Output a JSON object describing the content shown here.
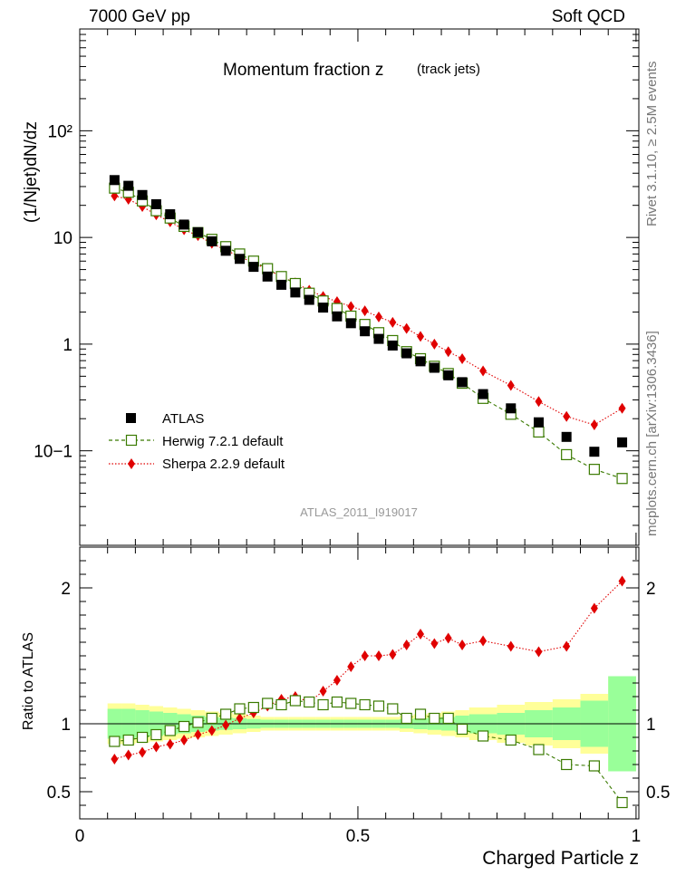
{
  "header": {
    "left": "7000 GeV pp",
    "right": "Soft QCD"
  },
  "side_labels": {
    "rivet": "Rivet 3.1.10, ≥ 2.5M events",
    "mcplots": "mcplots.cern.ch [arXiv:1306.3436]"
  },
  "colors": {
    "atlas": "#000000",
    "herwig": "#3a7a00",
    "sherpa": "#e00000",
    "band_outer": "#ffff99",
    "band_inner": "#99ff99"
  },
  "chart_data": [
    {
      "type": "scatter",
      "title": "Momentum fraction z",
      "subtitle": "(track jets)",
      "ylabel": "(1/Njet)dN/dz",
      "ylog": true,
      "ylim": [
        0.013,
        900
      ],
      "xlim": [
        0,
        1
      ],
      "y_ticks": [
        "10−1",
        "1",
        "10",
        "10²"
      ],
      "analysis_label": "ATLAS_2011_I919017",
      "legend": {
        "placement": "bottom-left"
      },
      "x": [
        0.0625,
        0.0875,
        0.1125,
        0.1375,
        0.1625,
        0.1875,
        0.2125,
        0.2375,
        0.2625,
        0.2875,
        0.3125,
        0.3375,
        0.3625,
        0.3875,
        0.4125,
        0.4375,
        0.4625,
        0.4875,
        0.5125,
        0.5375,
        0.5625,
        0.5875,
        0.6125,
        0.6375,
        0.6625,
        0.6875,
        0.725,
        0.775,
        0.825,
        0.875,
        0.925,
        0.975
      ],
      "series": [
        {
          "name": "ATLAS",
          "style": "filled-square",
          "values": [
            34.5,
            30.5,
            25,
            20.5,
            16.5,
            13.2,
            11.2,
            9.2,
            7.5,
            6.3,
            5.3,
            4.3,
            3.6,
            3.05,
            2.6,
            2.2,
            1.82,
            1.57,
            1.32,
            1.12,
            0.97,
            0.82,
            0.69,
            0.6,
            0.51,
            0.44,
            0.34,
            0.25,
            0.185,
            0.135,
            0.098,
            0.12
          ]
        },
        {
          "name": "Herwig 7.2.1 default",
          "style": "open-square-dashed",
          "values": [
            29,
            26.5,
            22,
            17.8,
            15.2,
            12.7,
            11.1,
            9.6,
            8.2,
            7.0,
            6.0,
            5.1,
            4.3,
            3.7,
            3.0,
            2.54,
            2.16,
            1.83,
            1.53,
            1.28,
            1.08,
            0.85,
            0.73,
            0.62,
            0.53,
            0.43,
            0.31,
            0.22,
            0.15,
            0.092,
            0.067,
            0.055
          ]
        },
        {
          "name": "Sherpa 2.2.9 default",
          "style": "red-diamond-dotted",
          "values": [
            24.5,
            22.8,
            19.5,
            16.3,
            14.0,
            11.8,
            10.4,
            8.8,
            7.6,
            6.6,
            5.8,
            5.0,
            4.3,
            3.75,
            3.2,
            2.8,
            2.5,
            2.25,
            2.05,
            1.8,
            1.6,
            1.4,
            1.18,
            1.0,
            0.85,
            0.73,
            0.56,
            0.41,
            0.29,
            0.21,
            0.175,
            0.25
          ]
        }
      ]
    },
    {
      "type": "scatter",
      "ylabel": "Ratio to ATLAS",
      "xlabel": "Charged Particle z",
      "ylim": [
        0.3,
        2.3
      ],
      "xlim": [
        0,
        1
      ],
      "y_ticks": [
        "0.5",
        "1",
        "2"
      ],
      "x_ticks": [
        "0",
        "0.5",
        "1"
      ],
      "x": [
        0.0625,
        0.0875,
        0.1125,
        0.1375,
        0.1625,
        0.1875,
        0.2125,
        0.2375,
        0.2625,
        0.2875,
        0.3125,
        0.3375,
        0.3625,
        0.3875,
        0.4125,
        0.4375,
        0.4625,
        0.4875,
        0.5125,
        0.5375,
        0.5625,
        0.5875,
        0.6125,
        0.6375,
        0.6625,
        0.6875,
        0.725,
        0.775,
        0.825,
        0.875,
        0.925,
        0.975
      ],
      "series": [
        {
          "name": "Herwig 7.2.1 default",
          "values": [
            0.87,
            0.88,
            0.9,
            0.92,
            0.95,
            0.98,
            1.01,
            1.04,
            1.07,
            1.11,
            1.12,
            1.15,
            1.14,
            1.17,
            1.16,
            1.14,
            1.16,
            1.15,
            1.14,
            1.13,
            1.11,
            1.04,
            1.07,
            1.04,
            1.04,
            0.96,
            0.91,
            0.88,
            0.81,
            0.7,
            0.69,
            0.42
          ]
        },
        {
          "name": "Sherpa 2.2.9 default",
          "values": [
            0.74,
            0.77,
            0.79,
            0.83,
            0.85,
            0.88,
            0.92,
            0.95,
            0.99,
            1.04,
            1.08,
            1.13,
            1.18,
            1.2,
            1.16,
            1.24,
            1.32,
            1.42,
            1.5,
            1.5,
            1.51,
            1.58,
            1.66,
            1.59,
            1.63,
            1.58,
            1.61,
            1.57,
            1.53,
            1.57,
            1.85,
            2.05
          ]
        }
      ],
      "bands": {
        "edges": [
          0.05,
          0.075,
          0.1,
          0.125,
          0.15,
          0.175,
          0.2,
          0.225,
          0.25,
          0.275,
          0.3,
          0.325,
          0.35,
          0.375,
          0.4,
          0.425,
          0.45,
          0.475,
          0.5,
          0.525,
          0.55,
          0.575,
          0.6,
          0.625,
          0.65,
          0.675,
          0.7,
          0.75,
          0.8,
          0.85,
          0.9,
          0.95,
          1.0
        ],
        "inner": [
          0.11,
          0.11,
          0.1,
          0.09,
          0.08,
          0.07,
          0.06,
          0.05,
          0.045,
          0.04,
          0.035,
          0.03,
          0.03,
          0.03,
          0.03,
          0.03,
          0.03,
          0.03,
          0.03,
          0.03,
          0.03,
          0.035,
          0.04,
          0.045,
          0.05,
          0.06,
          0.07,
          0.08,
          0.1,
          0.12,
          0.17,
          0.35
        ],
        "outer": [
          0.15,
          0.15,
          0.14,
          0.13,
          0.12,
          0.11,
          0.1,
          0.09,
          0.08,
          0.07,
          0.06,
          0.05,
          0.05,
          0.05,
          0.05,
          0.05,
          0.05,
          0.05,
          0.05,
          0.05,
          0.05,
          0.06,
          0.07,
          0.08,
          0.09,
          0.1,
          0.12,
          0.14,
          0.16,
          0.18,
          0.22,
          0.35
        ]
      }
    }
  ]
}
